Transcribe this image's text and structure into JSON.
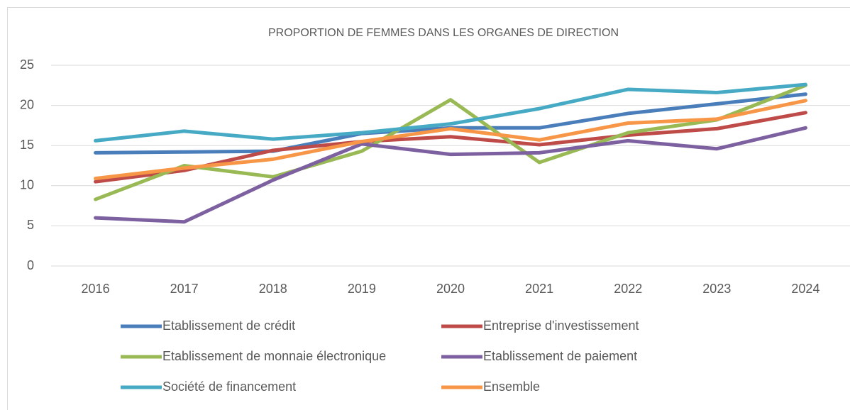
{
  "chart_data": {
    "type": "line",
    "title": "PROPORTION DE FEMMES DANS LES ORGANES DE DIRECTION",
    "categories": [
      "2016",
      "2017",
      "2018",
      "2019",
      "2020",
      "2021",
      "2022",
      "2023",
      "2024"
    ],
    "ylim": [
      0,
      25
    ],
    "yticks": [
      0,
      5,
      10,
      15,
      20,
      25
    ],
    "grid": true,
    "legend": "bottom",
    "series": [
      {
        "name": "Etablissement de crédit",
        "color": "#4a7ebb",
        "values": [
          14.1,
          14.2,
          14.3,
          16.5,
          17.2,
          17.2,
          19.0,
          20.2,
          21.4
        ]
      },
      {
        "name": "Entreprise d'investissement",
        "color": "#be4b48",
        "values": [
          10.5,
          11.9,
          14.4,
          15.5,
          16.1,
          15.1,
          16.3,
          17.1,
          19.1
        ]
      },
      {
        "name": "Etablissement de monnaie électronique",
        "color": "#98b954",
        "values": [
          8.3,
          12.5,
          11.1,
          14.3,
          20.7,
          12.9,
          16.6,
          18.2,
          22.5
        ]
      },
      {
        "name": "Etablissement de paiement",
        "color": "#7d60a0",
        "values": [
          6.0,
          5.5,
          10.7,
          15.2,
          13.9,
          14.1,
          15.6,
          14.6,
          17.2
        ]
      },
      {
        "name": "Société de financement",
        "color": "#46aac5",
        "values": [
          15.6,
          16.8,
          15.8,
          16.6,
          17.7,
          19.6,
          22.0,
          21.6,
          22.6
        ]
      },
      {
        "name": "Ensemble",
        "color": "#f79646",
        "values": [
          10.9,
          12.2,
          13.3,
          15.5,
          17.1,
          15.7,
          17.8,
          18.3,
          20.6
        ]
      }
    ]
  }
}
